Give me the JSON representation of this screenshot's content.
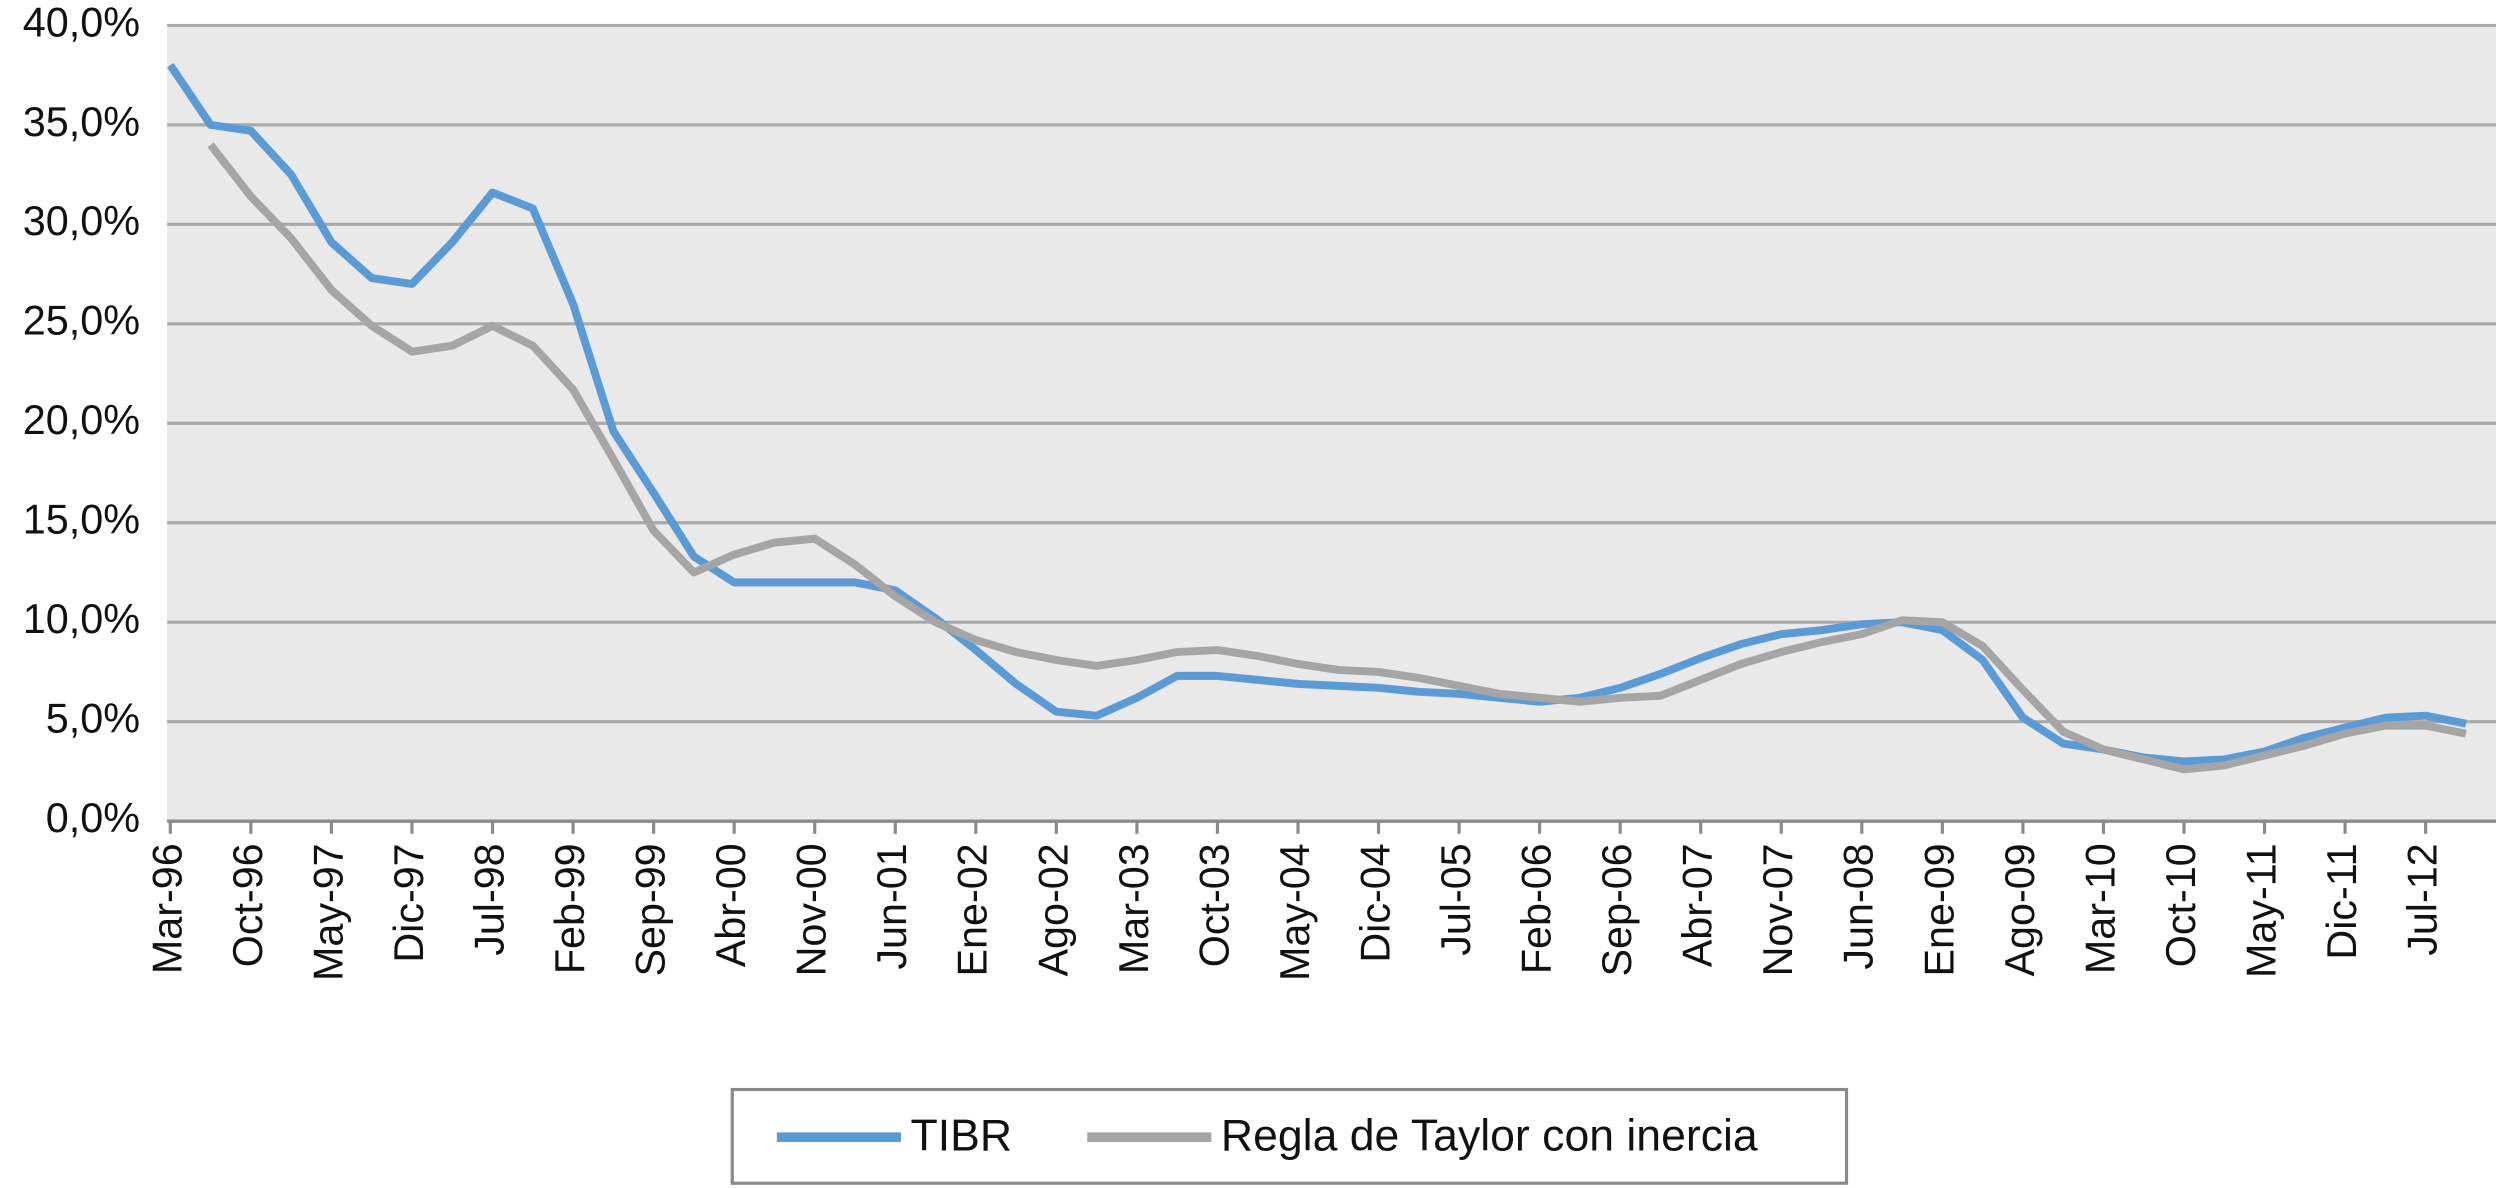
{
  "chart_data": {
    "type": "line",
    "categories": [
      "Mar-96",
      null,
      "Oct-96",
      null,
      "May-97",
      null,
      "Dic-97",
      null,
      "Jul-98",
      null,
      "Feb-99",
      null,
      "Sep-99",
      null,
      "Abr-00",
      null,
      "Nov-00",
      null,
      "Jun-01",
      null,
      "Ene-02",
      null,
      "Ago-02",
      null,
      "Mar-03",
      null,
      "Oct-03",
      null,
      "May-04",
      null,
      "Dic-04",
      null,
      "Jul-05",
      null,
      "Feb-06",
      null,
      "Sep-06",
      null,
      "Abr-07",
      null,
      "Nov-07",
      null,
      "Jun-08",
      null,
      "Ene-09",
      null,
      "Ago-09",
      null,
      "Mar-10",
      null,
      "Oct-10",
      null,
      "May-11",
      null,
      "Dic-11",
      null,
      "Jul-12",
      null
    ],
    "series": [
      {
        "name": "TIBR",
        "color": "#5b9bd5",
        "values": [
          38.0,
          35.0,
          34.7,
          32.5,
          29.1,
          27.3,
          27.0,
          29.1,
          31.6,
          30.8,
          26.0,
          19.6,
          16.5,
          13.3,
          12.0,
          12.0,
          12.0,
          12.0,
          11.6,
          10.2,
          8.6,
          6.9,
          5.5,
          5.3,
          6.2,
          7.3,
          7.3,
          7.1,
          6.9,
          6.8,
          6.7,
          6.5,
          6.4,
          6.2,
          6.0,
          6.2,
          6.7,
          7.4,
          8.2,
          8.9,
          9.4,
          9.6,
          9.9,
          10.0,
          9.6,
          8.1,
          5.2,
          3.9,
          3.6,
          3.2,
          3.0,
          3.1,
          3.5,
          4.2,
          4.7,
          5.2,
          5.3,
          4.9
        ]
      },
      {
        "name": "Regla de Taylor con inercia",
        "color": "#a5a5a5",
        "values": [
          null,
          34.0,
          31.4,
          29.3,
          26.7,
          24.9,
          23.6,
          23.9,
          24.9,
          23.9,
          21.7,
          18.2,
          14.6,
          12.5,
          13.4,
          14.0,
          14.2,
          12.9,
          11.3,
          10.0,
          9.1,
          8.5,
          8.1,
          7.8,
          8.1,
          8.5,
          8.6,
          8.3,
          7.9,
          7.6,
          7.5,
          7.2,
          6.8,
          6.4,
          6.2,
          6.0,
          6.2,
          6.3,
          7.1,
          7.9,
          8.5,
          9.0,
          9.4,
          10.1,
          10.0,
          8.8,
          6.6,
          4.5,
          3.6,
          3.1,
          2.6,
          2.8,
          3.3,
          3.8,
          4.4,
          4.8,
          4.8,
          4.4
        ]
      }
    ],
    "ylim": [
      0,
      40
    ],
    "yticks": [
      {
        "value": 0,
        "label": "0,0%"
      },
      {
        "value": 5,
        "label": "5,0%"
      },
      {
        "value": 10,
        "label": "10,0%"
      },
      {
        "value": 15,
        "label": "15,0%"
      },
      {
        "value": 20,
        "label": "20,0%"
      },
      {
        "value": 25,
        "label": "25,0%"
      },
      {
        "value": 30,
        "label": "30,0%"
      },
      {
        "value": 35,
        "label": "35,0%"
      },
      {
        "value": 40,
        "label": "40,0%"
      }
    ],
    "grid": true,
    "legend": "bottom"
  }
}
